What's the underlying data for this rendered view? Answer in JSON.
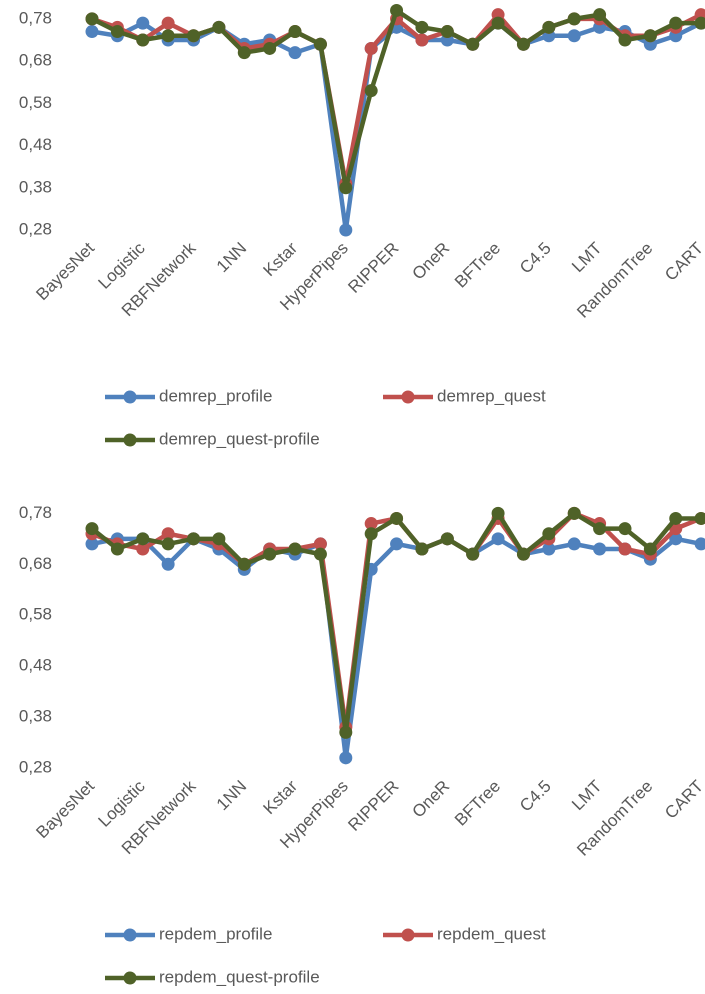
{
  "chart_data": [
    {
      "type": "line",
      "categories": [
        "BayesNet",
        null,
        "Logistic",
        null,
        "RBFNetwork",
        null,
        "1NN",
        null,
        "Kstar",
        null,
        "HyperPipes",
        null,
        "RIPPER",
        null,
        "OneR",
        null,
        "BFTree",
        null,
        "C4.5",
        null,
        "LMT",
        null,
        "RandomTree",
        null,
        "CART"
      ],
      "series": [
        {
          "name": "demrep_profile",
          "color": "#4f81bd",
          "values": [
            0.75,
            0.74,
            0.77,
            0.73,
            0.73,
            0.76,
            0.72,
            0.73,
            0.7,
            0.72,
            0.28,
            0.71,
            0.76,
            0.73,
            0.73,
            0.72,
            0.77,
            0.72,
            0.74,
            0.74,
            0.76,
            0.75,
            0.72,
            0.74,
            0.77
          ]
        },
        {
          "name": "demrep_quest",
          "color": "#c0504d",
          "values": [
            0.78,
            0.76,
            0.73,
            0.77,
            0.74,
            0.76,
            0.71,
            0.72,
            0.75,
            0.72,
            0.39,
            0.71,
            0.78,
            0.73,
            0.75,
            0.72,
            0.79,
            0.72,
            0.76,
            0.78,
            0.78,
            0.74,
            0.74,
            0.76,
            0.79
          ]
        },
        {
          "name": "demrep_quest-profile",
          "color": "#4f6228",
          "values": [
            0.78,
            0.75,
            0.73,
            0.74,
            0.74,
            0.76,
            0.7,
            0.71,
            0.75,
            0.72,
            0.38,
            0.61,
            0.8,
            0.76,
            0.75,
            0.72,
            0.77,
            0.72,
            0.76,
            0.78,
            0.79,
            0.73,
            0.74,
            0.77,
            0.77
          ]
        }
      ],
      "ylim": [
        0.28,
        0.82
      ],
      "yticks": [
        {
          "value": 0.28,
          "label": "0,28"
        },
        {
          "value": 0.38,
          "label": "0,38"
        },
        {
          "value": 0.48,
          "label": "0,48"
        },
        {
          "value": 0.58,
          "label": "0,58"
        },
        {
          "value": 0.68,
          "label": "0,68"
        },
        {
          "value": 0.78,
          "label": "0,78"
        }
      ],
      "grid": false
    },
    {
      "type": "line",
      "categories": [
        "BayesNet",
        null,
        "Logistic",
        null,
        "RBFNetwork",
        null,
        "1NN",
        null,
        "Kstar",
        null,
        "HyperPipes",
        null,
        "RIPPER",
        null,
        "OneR",
        null,
        "BFTree",
        null,
        "C4.5",
        null,
        "LMT",
        null,
        "RandomTree",
        null,
        "CART"
      ],
      "series": [
        {
          "name": "repdem_profile",
          "color": "#4f81bd",
          "values": [
            0.72,
            0.73,
            0.73,
            0.68,
            0.73,
            0.71,
            0.67,
            0.71,
            0.7,
            0.72,
            0.3,
            0.67,
            0.72,
            0.71,
            0.73,
            0.7,
            0.73,
            0.7,
            0.71,
            0.72,
            0.71,
            0.71,
            0.69,
            0.73,
            0.72
          ]
        },
        {
          "name": "repdem_quest",
          "color": "#c0504d",
          "values": [
            0.74,
            0.72,
            0.71,
            0.74,
            0.73,
            0.72,
            0.68,
            0.71,
            0.71,
            0.72,
            0.36,
            0.76,
            0.77,
            0.71,
            0.73,
            0.7,
            0.77,
            0.7,
            0.73,
            0.78,
            0.76,
            0.71,
            0.7,
            0.75,
            0.77
          ]
        },
        {
          "name": "repdem_quest-profile",
          "color": "#4f6228",
          "values": [
            0.75,
            0.71,
            0.73,
            0.72,
            0.73,
            0.73,
            0.68,
            0.7,
            0.71,
            0.7,
            0.35,
            0.74,
            0.77,
            0.71,
            0.73,
            0.7,
            0.78,
            0.7,
            0.74,
            0.78,
            0.75,
            0.75,
            0.71,
            0.77,
            0.77
          ]
        }
      ],
      "ylim": [
        0.28,
        0.82
      ],
      "yticks": [
        {
          "value": 0.28,
          "label": "0,28"
        },
        {
          "value": 0.38,
          "label": "0,38"
        },
        {
          "value": 0.48,
          "label": "0,48"
        },
        {
          "value": 0.58,
          "label": "0,58"
        },
        {
          "value": 0.68,
          "label": "0,68"
        },
        {
          "value": 0.78,
          "label": "0,78"
        }
      ],
      "grid": false
    }
  ]
}
